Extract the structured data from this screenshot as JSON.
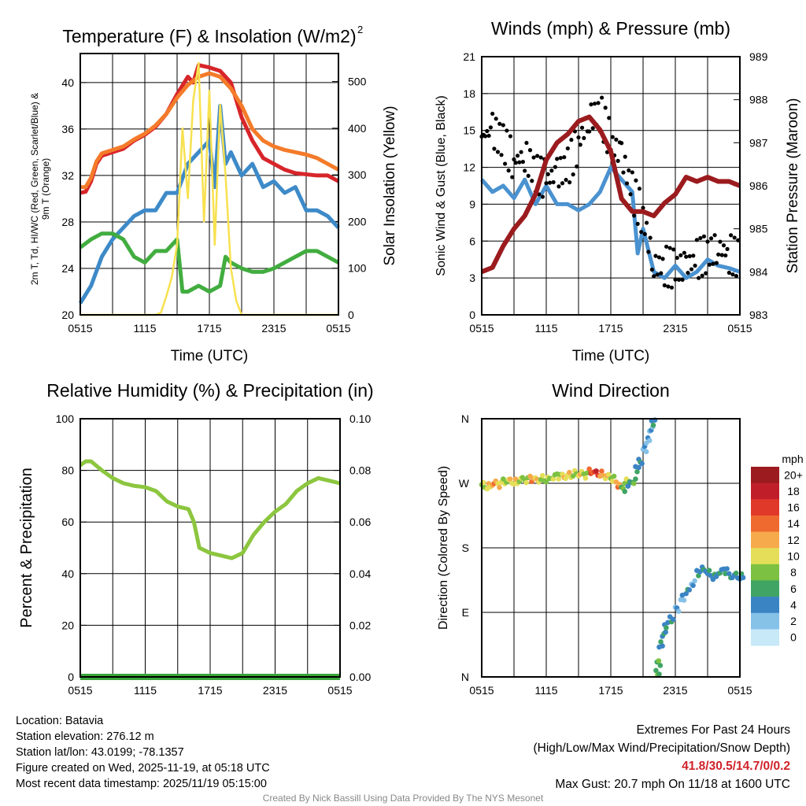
{
  "chart_data": [
    {
      "type": "line",
      "title": "Temperature (F) & Insolation (W/m2)",
      "xlabel": "Time (UTC)",
      "ylabel": "2m T, Td, HI/WC (Red, Green, Scarlet/Blue) & 9m T (Orange)",
      "ylabel_line1": "2m T, T",
      "ylabel_sub": "d",
      "ylabel_line1b": ", HI/WC (Red, Green, Scarlet/Blue)",
      "ylabel_line2": "& 9m T (Orange)",
      "y2label": "Solar Insolation (Yellow)",
      "xticks": [
        "0515",
        "1115",
        "1715",
        "2315",
        "0515"
      ],
      "ylim": [
        20,
        42.5
      ],
      "yticks": [
        20,
        24,
        28,
        32,
        36,
        40
      ],
      "y2lim": [
        0,
        560
      ],
      "y2ticks": [
        0,
        100,
        200,
        300,
        400,
        500
      ],
      "series": [
        {
          "name": "2m T",
          "color": "#d7252a",
          "axis": "left",
          "x": [
            0,
            0.5,
            1,
            1.5,
            2,
            3,
            4,
            5,
            6,
            7,
            8,
            9,
            10,
            10.5,
            11,
            12,
            13,
            14,
            15,
            16,
            17,
            18,
            19,
            20,
            22,
            23,
            24
          ],
          "y": [
            30.5,
            30.6,
            31.5,
            33,
            33.7,
            34,
            34.3,
            35,
            35.5,
            36.2,
            37.3,
            39,
            40.5,
            40,
            41.5,
            41.3,
            41,
            40,
            37,
            35,
            33.5,
            33,
            32.5,
            32.2,
            32,
            32,
            31.5
          ]
        },
        {
          "name": "9m T",
          "color": "#f47b2a",
          "axis": "left",
          "x": [
            0,
            0.5,
            1,
            1.5,
            2,
            3,
            4,
            5,
            6,
            7,
            8,
            9,
            10,
            11,
            12,
            13,
            14,
            15,
            16,
            17,
            18,
            19,
            20,
            21,
            22,
            23,
            24
          ],
          "y": [
            31,
            31,
            31.8,
            33.2,
            33.9,
            34.2,
            34.5,
            35.1,
            35.6,
            36.3,
            37.3,
            38.7,
            39.8,
            40.5,
            40.8,
            40.5,
            39.5,
            38,
            36,
            35,
            34.5,
            34.2,
            34,
            33.8,
            33.5,
            33,
            32.5
          ]
        },
        {
          "name": "HI/WC",
          "color": "#3d8ac8",
          "axis": "left",
          "x": [
            0,
            1,
            2,
            3,
            4,
            5,
            6,
            7,
            8,
            9,
            10,
            11,
            12,
            12.5,
            13,
            13.5,
            14,
            15,
            16,
            17,
            18,
            19,
            20,
            21,
            22,
            23,
            24
          ],
          "y": [
            21,
            22.5,
            25,
            26.5,
            27.5,
            28.5,
            29,
            29,
            30.5,
            30.5,
            33,
            34,
            35,
            31,
            38,
            33,
            34,
            32,
            33,
            31,
            31.5,
            30.5,
            31,
            29,
            29,
            28.5,
            27.5
          ]
        },
        {
          "name": "Td",
          "color": "#41ad3f",
          "axis": "left",
          "x": [
            0,
            1,
            2,
            3,
            4,
            5,
            6,
            7,
            8,
            9,
            9.5,
            10,
            11,
            12,
            13,
            13.5,
            14,
            15,
            16,
            17,
            18,
            19,
            20,
            21,
            22,
            23,
            24
          ],
          "y": [
            25.8,
            26.5,
            27,
            27,
            26.5,
            25,
            24.5,
            25.5,
            25.5,
            26.5,
            22,
            22,
            22.5,
            22,
            22.5,
            25,
            24.5,
            24,
            23.7,
            23.7,
            24,
            24.5,
            25,
            25.5,
            25.5,
            25,
            24.5
          ]
        },
        {
          "name": "Solar",
          "color": "#f7e14f",
          "axis": "right",
          "x": [
            0,
            7,
            7.5,
            8,
            8.5,
            9,
            9.5,
            10,
            10.5,
            11,
            11.5,
            12,
            12.5,
            13,
            13.5,
            14,
            14.5,
            15,
            24
          ],
          "y": [
            0,
            0,
            5,
            40,
            80,
            150,
            400,
            250,
            460,
            540,
            200,
            480,
            150,
            450,
            300,
            100,
            30,
            0,
            0
          ]
        }
      ]
    },
    {
      "type": "line",
      "title": "Winds (mph) & Pressure (mb)",
      "xlabel": "Time (UTC)",
      "ylabel": "Sonic Wind & Gust (Blue, Black)",
      "y2label": "Station Pressure (Maroon)",
      "xticks": [
        "0515",
        "1115",
        "1715",
        "2315",
        "0515"
      ],
      "ylim": [
        0,
        21
      ],
      "yticks": [
        0,
        3,
        6,
        9,
        12,
        15,
        18,
        21
      ],
      "y2lim": [
        983,
        989
      ],
      "y2ticks": [
        983,
        984,
        985,
        986,
        987,
        988,
        989
      ],
      "series": [
        {
          "name": "Sonic Wind",
          "color": "#4a92d0",
          "axis": "left",
          "x": [
            0,
            1,
            2,
            3,
            4,
            5,
            6,
            7,
            8,
            9,
            10,
            11,
            12,
            13,
            14,
            14.5,
            15,
            16,
            17,
            18,
            19,
            20,
            21,
            22,
            23,
            24
          ],
          "y": [
            11,
            10,
            10.5,
            9.5,
            11,
            9,
            10.5,
            9,
            9,
            8.5,
            9,
            10,
            12,
            11,
            10,
            5,
            7,
            3.5,
            3,
            4,
            3,
            3.5,
            4.5,
            4,
            3.8,
            3.5
          ]
        },
        {
          "name": "Gust",
          "color": "#000000",
          "axis": "left",
          "type": "scatter",
          "x": [
            0,
            1,
            2,
            3,
            4,
            5,
            6,
            7,
            8,
            9,
            10,
            11,
            12,
            13,
            14,
            15,
            16,
            17,
            18,
            19,
            20,
            21,
            22,
            23,
            24
          ],
          "y": [
            14.5,
            15,
            14,
            12.5,
            13,
            11.5,
            11,
            11.5,
            12,
            14,
            16,
            16.5,
            14,
            13,
            10,
            8,
            4,
            4,
            3.7,
            4,
            4.5,
            5,
            5.5,
            5,
            4.5
          ]
        },
        {
          "name": "Pressure",
          "color": "#9b1b1e",
          "axis": "right",
          "x": [
            0,
            1,
            2,
            3,
            4,
            5,
            6,
            7,
            8,
            9,
            10,
            11,
            12,
            13,
            14,
            15,
            16,
            17,
            18,
            19,
            20,
            21,
            22,
            23,
            24
          ],
          "y": [
            984,
            984.1,
            984.6,
            985,
            985.3,
            985.8,
            986.6,
            987,
            987.2,
            987.5,
            987.6,
            987.3,
            986.8,
            985.7,
            985.4,
            985.4,
            985.3,
            985.6,
            985.8,
            986.2,
            986.1,
            986.2,
            986.1,
            986.1,
            986
          ]
        }
      ]
    },
    {
      "type": "line",
      "title": "Relative Humidity (%) & Precipitation (in)",
      "ylabel": "Percent & Precipitation",
      "xticks": [
        "0515",
        "1115",
        "1715",
        "2315",
        "0515"
      ],
      "ylim": [
        0,
        100
      ],
      "yticks": [
        0,
        20,
        40,
        60,
        80,
        100
      ],
      "y2lim": [
        0,
        0.1
      ],
      "y2ticks": [
        "0.00",
        "0.02",
        "0.04",
        "0.06",
        "0.08",
        "0.10"
      ],
      "series": [
        {
          "name": "RH",
          "color": "#8cc63f",
          "axis": "left",
          "x": [
            0,
            0.5,
            1,
            2,
            3,
            4,
            5,
            6,
            7,
            8,
            9,
            10,
            10.5,
            11,
            12,
            13,
            14,
            15,
            16,
            17,
            18,
            19,
            20,
            21,
            22,
            23,
            24
          ],
          "y": [
            82,
            83.5,
            83.5,
            80,
            77,
            75,
            74,
            73.5,
            72,
            68,
            66,
            65,
            60,
            50,
            48,
            47,
            46,
            48,
            55,
            60,
            64,
            67,
            72,
            75,
            77,
            76,
            75
          ]
        },
        {
          "name": "Precipitation",
          "color": "#3aa53a",
          "axis": "right",
          "x": [
            0,
            24
          ],
          "y": [
            0,
            0
          ]
        }
      ]
    },
    {
      "type": "scatter",
      "title": "Wind Direction",
      "ylabel": "Direction (Colored By Speed)",
      "xticks": [
        "0515",
        "1115",
        "1715",
        "2315",
        "0515"
      ],
      "yticks": [
        "N",
        "E",
        "S",
        "W",
        "N"
      ],
      "ylim": [
        0,
        360
      ],
      "colorbar": {
        "label": "mph",
        "ticks": [
          "0",
          "2",
          "4",
          "6",
          "8",
          "10",
          "12",
          "14",
          "16",
          "18",
          "20+"
        ],
        "colors": [
          "#c7e9f8",
          "#86c1e8",
          "#3b84c4",
          "#3fa464",
          "#7cc142",
          "#e4de58",
          "#f6aa4b",
          "#ef6a2f",
          "#e0392a",
          "#c01f2a",
          "#9b1b1e"
        ]
      },
      "points": [
        [
          0,
          268,
          8
        ],
        [
          0.5,
          266,
          10
        ],
        [
          1,
          270,
          12
        ],
        [
          1.5,
          268,
          9
        ],
        [
          2,
          272,
          8
        ],
        [
          2.5,
          274,
          10
        ],
        [
          3,
          272,
          9
        ],
        [
          3.5,
          276,
          8
        ],
        [
          4,
          274,
          8
        ],
        [
          4.5,
          276,
          11
        ],
        [
          5,
          275,
          9
        ],
        [
          5.5,
          277,
          8
        ],
        [
          6,
          276,
          7
        ],
        [
          6.5,
          278,
          8
        ],
        [
          7,
          280,
          8
        ],
        [
          7.5,
          279,
          10
        ],
        [
          8,
          282,
          9
        ],
        [
          8.5,
          284,
          8
        ],
        [
          9,
          283,
          10
        ],
        [
          9.5,
          281,
          8
        ],
        [
          10,
          286,
          13
        ],
        [
          10.5,
          285,
          15
        ],
        [
          11,
          283,
          12
        ],
        [
          11.5,
          280,
          9
        ],
        [
          12,
          276,
          7
        ],
        [
          12.5,
          268,
          11
        ],
        [
          13,
          262,
          5
        ],
        [
          13.3,
          272,
          7
        ],
        [
          13.6,
          270,
          4
        ],
        [
          14,
          272,
          6
        ],
        [
          14.3,
          290,
          4
        ],
        [
          14.6,
          300,
          3
        ],
        [
          15,
          318,
          2
        ],
        [
          15.3,
          330,
          2
        ],
        [
          15.6,
          345,
          2
        ],
        [
          15.8,
          355,
          3
        ],
        [
          16.2,
          5,
          6
        ],
        [
          16.3,
          20,
          6
        ],
        [
          16.5,
          45,
          4
        ],
        [
          16.8,
          60,
          3
        ],
        [
          17,
          72,
          4
        ],
        [
          17.5,
          80,
          3
        ],
        [
          18,
          95,
          2
        ],
        [
          18.5,
          110,
          2
        ],
        [
          19,
          120,
          3
        ],
        [
          19.5,
          130,
          2
        ],
        [
          20,
          145,
          3
        ],
        [
          20.5,
          150,
          4
        ],
        [
          21,
          145,
          4
        ],
        [
          21.5,
          140,
          3
        ],
        [
          22,
          146,
          4
        ],
        [
          22.5,
          148,
          4
        ],
        [
          23,
          140,
          4
        ],
        [
          23.5,
          142,
          4
        ],
        [
          24,
          140,
          4
        ]
      ]
    }
  ],
  "footer": {
    "location": "Location: Batavia",
    "elevation": "Station elevation: 276.12 m",
    "latlon": "Station lat/lon: 43.0199; -78.1357",
    "created": "Figure created on Wed, 2025-11-19, at 05:18 UTC",
    "recent": "Most recent data timestamp: 2025/11/19 05:15:00",
    "extremes_title": "Extremes For Past 24 Hours",
    "extremes_sub": "(High/Low/Max Wind/Precipitation/Snow Depth)",
    "extremes_values": "41.8/30.5/14.7/0/0.2",
    "max_gust": "Max Gust: 20.7 mph On 11/18 at 1600 UTC",
    "credit": "Created By Nick Bassill Using Data Provided By The NYS Mesonet"
  }
}
